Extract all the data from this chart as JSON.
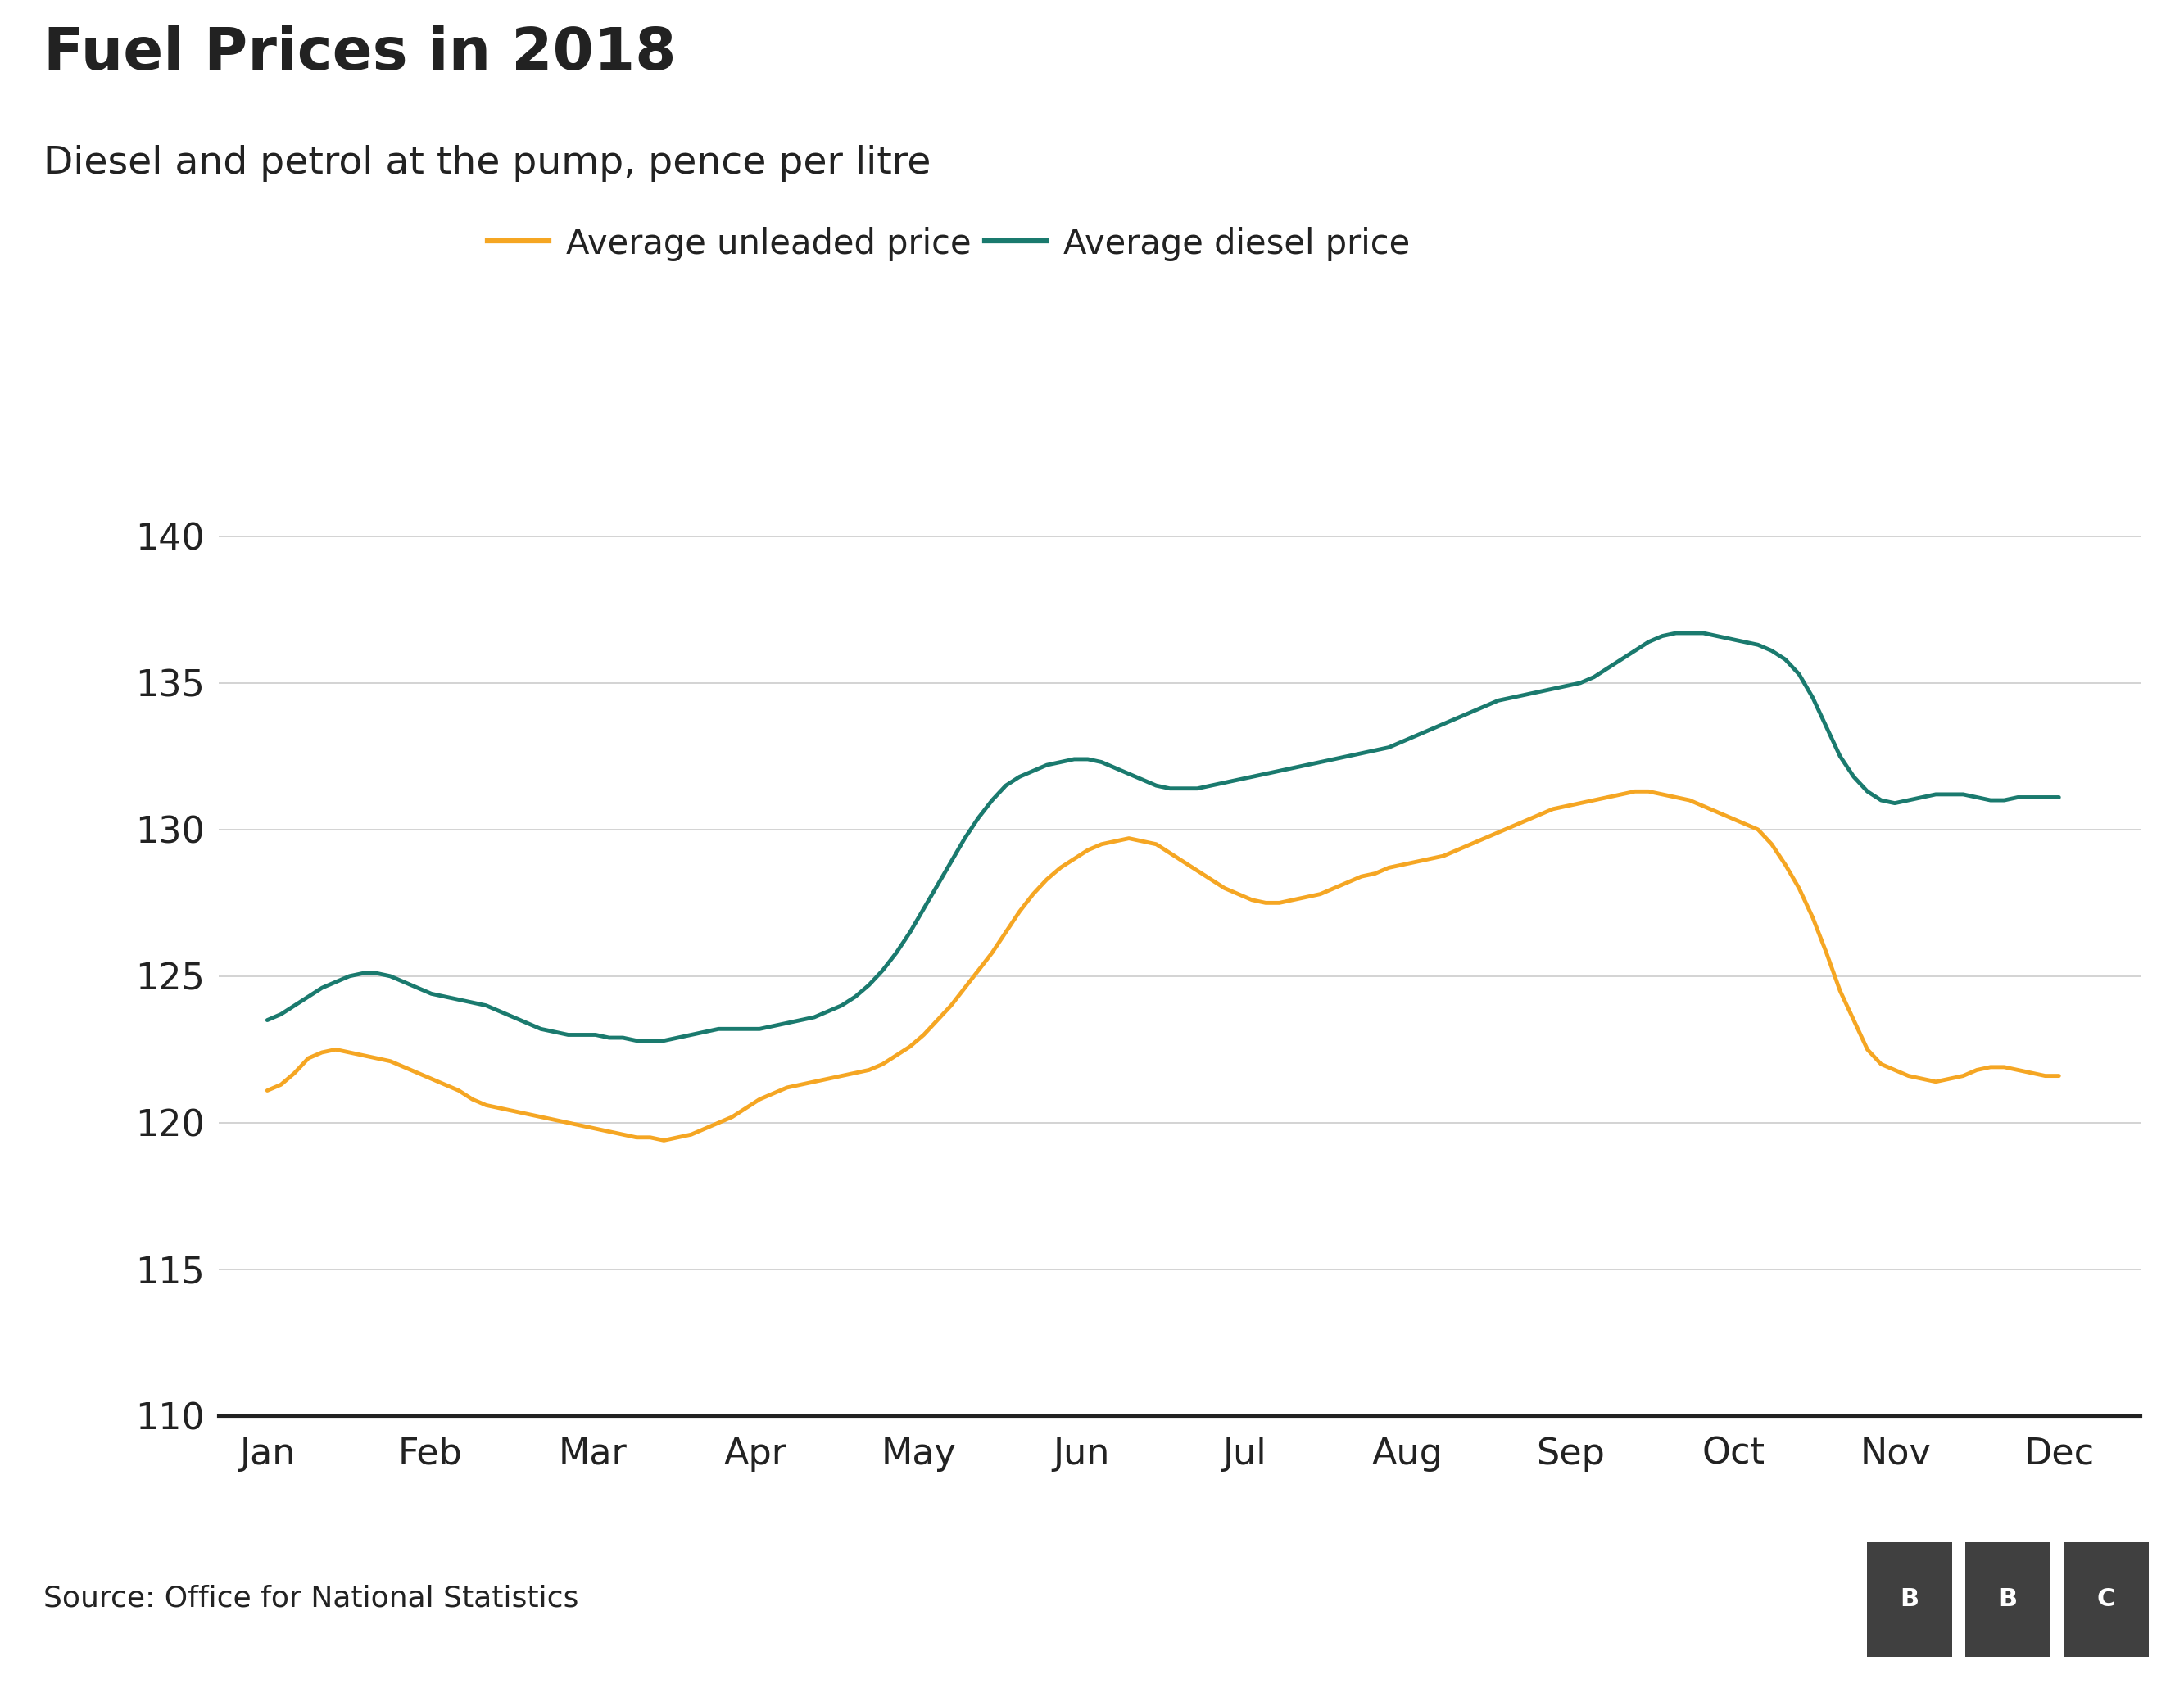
{
  "title": "Fuel Prices in 2018",
  "subtitle": "Diesel and petrol at the pump, pence per litre",
  "source": "Source: Office for National Statistics",
  "legend_unleaded": "Average unleaded price",
  "legend_diesel": "Average diesel price",
  "color_unleaded": "#F5A623",
  "color_diesel": "#1A7A6E",
  "ylim": [
    110,
    142
  ],
  "yticks": [
    110,
    115,
    120,
    125,
    130,
    135,
    140
  ],
  "months": [
    "Jan",
    "Feb",
    "Mar",
    "Apr",
    "May",
    "Jun",
    "Jul",
    "Aug",
    "Sep",
    "Oct",
    "Nov",
    "Dec"
  ],
  "unleaded": [
    121.1,
    121.3,
    121.7,
    122.2,
    122.4,
    122.5,
    122.4,
    122.3,
    122.2,
    122.1,
    121.9,
    121.7,
    121.5,
    121.3,
    121.1,
    120.8,
    120.6,
    120.5,
    120.4,
    120.3,
    120.2,
    120.1,
    120.0,
    119.9,
    119.8,
    119.7,
    119.6,
    119.5,
    119.5,
    119.4,
    119.5,
    119.6,
    119.8,
    120.0,
    120.2,
    120.5,
    120.8,
    121.0,
    121.2,
    121.3,
    121.4,
    121.5,
    121.6,
    121.7,
    121.8,
    122.0,
    122.3,
    122.6,
    123.0,
    123.5,
    124.0,
    124.6,
    125.2,
    125.8,
    126.5,
    127.2,
    127.8,
    128.3,
    128.7,
    129.0,
    129.3,
    129.5,
    129.6,
    129.7,
    129.6,
    129.5,
    129.2,
    128.9,
    128.6,
    128.3,
    128.0,
    127.8,
    127.6,
    127.5,
    127.5,
    127.6,
    127.7,
    127.8,
    128.0,
    128.2,
    128.4,
    128.5,
    128.7,
    128.8,
    128.9,
    129.0,
    129.1,
    129.3,
    129.5,
    129.7,
    129.9,
    130.1,
    130.3,
    130.5,
    130.7,
    130.8,
    130.9,
    131.0,
    131.1,
    131.2,
    131.3,
    131.3,
    131.2,
    131.1,
    131.0,
    130.8,
    130.6,
    130.4,
    130.2,
    130.0,
    129.5,
    128.8,
    128.0,
    127.0,
    125.8,
    124.5,
    123.5,
    122.5,
    122.0,
    121.8,
    121.6,
    121.5,
    121.4,
    121.5,
    121.6,
    121.8,
    121.9,
    121.9,
    121.8,
    121.7,
    121.6,
    121.6
  ],
  "diesel": [
    123.5,
    123.7,
    124.0,
    124.3,
    124.6,
    124.8,
    125.0,
    125.1,
    125.1,
    125.0,
    124.8,
    124.6,
    124.4,
    124.3,
    124.2,
    124.1,
    124.0,
    123.8,
    123.6,
    123.4,
    123.2,
    123.1,
    123.0,
    123.0,
    123.0,
    122.9,
    122.9,
    122.8,
    122.8,
    122.8,
    122.9,
    123.0,
    123.1,
    123.2,
    123.2,
    123.2,
    123.2,
    123.3,
    123.4,
    123.5,
    123.6,
    123.8,
    124.0,
    124.3,
    124.7,
    125.2,
    125.8,
    126.5,
    127.3,
    128.1,
    128.9,
    129.7,
    130.4,
    131.0,
    131.5,
    131.8,
    132.0,
    132.2,
    132.3,
    132.4,
    132.4,
    132.3,
    132.1,
    131.9,
    131.7,
    131.5,
    131.4,
    131.4,
    131.4,
    131.5,
    131.6,
    131.7,
    131.8,
    131.9,
    132.0,
    132.1,
    132.2,
    132.3,
    132.4,
    132.5,
    132.6,
    132.7,
    132.8,
    133.0,
    133.2,
    133.4,
    133.6,
    133.8,
    134.0,
    134.2,
    134.4,
    134.5,
    134.6,
    134.7,
    134.8,
    134.9,
    135.0,
    135.2,
    135.5,
    135.8,
    136.1,
    136.4,
    136.6,
    136.7,
    136.7,
    136.7,
    136.6,
    136.5,
    136.4,
    136.3,
    136.1,
    135.8,
    135.3,
    134.5,
    133.5,
    132.5,
    131.8,
    131.3,
    131.0,
    130.9,
    131.0,
    131.1,
    131.2,
    131.2,
    131.2,
    131.1,
    131.0,
    131.0,
    131.1,
    131.1,
    131.1,
    131.1
  ],
  "background_color": "#ffffff",
  "grid_color": "#cccccc",
  "axis_color": "#222222",
  "title_fontsize": 52,
  "subtitle_fontsize": 34,
  "legend_fontsize": 30,
  "tick_fontsize": 32,
  "source_fontsize": 26,
  "line_width": 3.5,
  "bbc_box_color": "#404040"
}
